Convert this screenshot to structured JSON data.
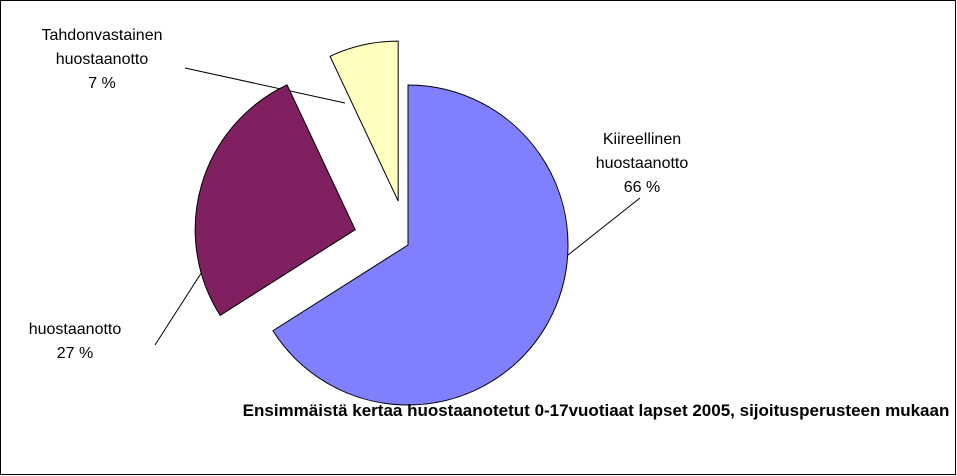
{
  "chart_data": {
    "type": "pie",
    "title": "Ensimmäistä kertaa huostaanotetut 0-17vuotiaat lapset 2005, sijoitusperusteen mukaan",
    "categories": [
      "Kiireellinen huostaanotto",
      "huostaanotto",
      "Tahdonvastainen huostaanotto"
    ],
    "values": [
      66,
      27,
      7
    ],
    "value_labels": [
      "66 %",
      "27 %",
      "7 %"
    ],
    "colors": [
      "#8080ff",
      "#802060",
      "#ffffc0"
    ]
  }
}
